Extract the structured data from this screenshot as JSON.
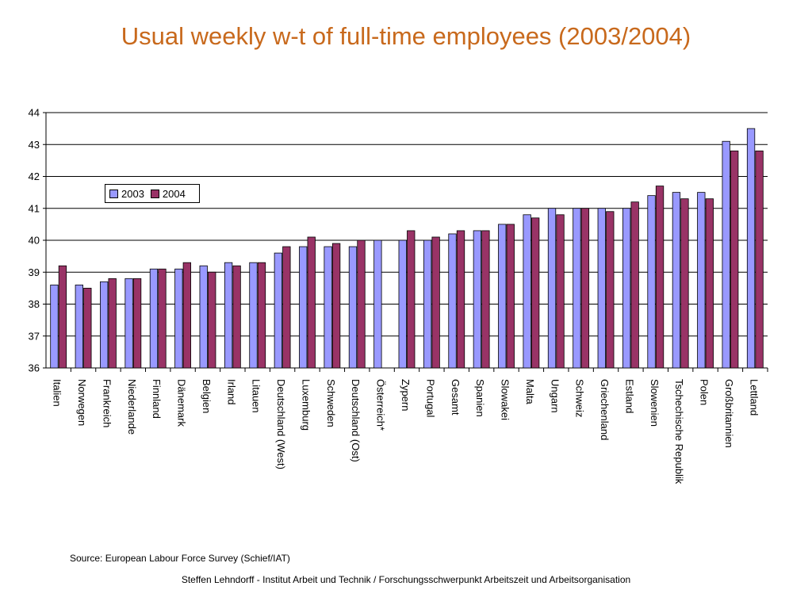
{
  "title": "Usual weekly w-t of full-time employees (2003/2004)",
  "source": "Source: European Labour Force Survey (Schief/IAT)",
  "footer": "Steffen Lehndorff - Institut Arbeit und Technik / Forschungsschwerpunkt Arbeitszeit und Arbeitsorganisation",
  "colors": {
    "s2003": "#9999ff",
    "s2004": "#993366",
    "title": "#c8691c"
  },
  "chart_data": {
    "type": "bar",
    "ylim": [
      36,
      44
    ],
    "yticks": [
      36,
      37,
      38,
      39,
      40,
      41,
      42,
      43,
      44
    ],
    "grid": true,
    "legend_position": "top-left",
    "categories": [
      "Italien",
      "Norwegen",
      "Frankreich",
      "Niederlande",
      "Finnland",
      "Dänemark",
      "Belgien",
      "Irland",
      "Litauen",
      "Deutschland (West)",
      "Luxemburg",
      "Schweden",
      "Deutschland (Ost)",
      "Österreich*",
      "Zypern",
      "Portugal",
      "Gesamt",
      "Spanien",
      "Slowakei",
      "Malta",
      "Ungarn",
      "Schweiz",
      "Griechenland",
      "Estland",
      "Slowenien",
      "Tschechische Republik",
      "Polen",
      "Großbritannien",
      "Lettland"
    ],
    "series": [
      {
        "name": "2003",
        "values": [
          38.6,
          38.6,
          38.7,
          38.8,
          39.1,
          39.1,
          39.2,
          39.3,
          39.3,
          39.6,
          39.8,
          39.8,
          39.8,
          40.0,
          40.0,
          40.0,
          40.2,
          40.3,
          40.5,
          40.8,
          41.0,
          41.0,
          41.0,
          41.0,
          41.4,
          41.5,
          41.5,
          43.1,
          43.5
        ]
      },
      {
        "name": "2004",
        "values": [
          39.2,
          38.5,
          38.8,
          38.8,
          39.1,
          39.3,
          39.0,
          39.2,
          39.3,
          39.8,
          40.1,
          39.9,
          40.0,
          null,
          40.3,
          40.1,
          40.3,
          40.3,
          40.5,
          40.7,
          40.8,
          41.0,
          40.9,
          41.2,
          41.7,
          41.3,
          41.3,
          42.8,
          42.8
        ]
      }
    ]
  }
}
